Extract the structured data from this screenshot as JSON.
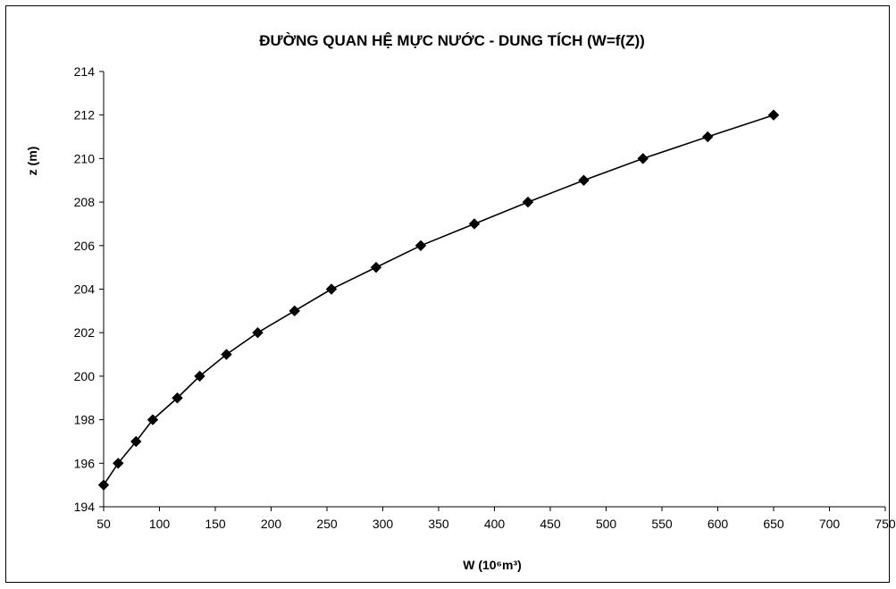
{
  "chart_data": {
    "type": "line",
    "title": "ĐƯỜNG QUAN HỆ MỰC NƯỚC - DUNG TÍCH (W=f(Z))",
    "xlabel": "W (10⁶m³)",
    "ylabel": "z (m)",
    "xlim": [
      50,
      750
    ],
    "ylim": [
      194,
      214
    ],
    "xticks": [
      "50",
      "100",
      "150",
      "200",
      "250",
      "300",
      "350",
      "400",
      "450",
      "500",
      "550",
      "600",
      "650",
      "700",
      "750"
    ],
    "yticks": [
      "194",
      "196",
      "198",
      "200",
      "202",
      "204",
      "206",
      "208",
      "210",
      "212",
      "214"
    ],
    "grid": false,
    "legend": "none",
    "marker": "diamond",
    "line_color": "#000000",
    "series": [
      {
        "x": [
          50,
          63,
          79,
          94,
          116,
          136,
          160,
          188,
          221,
          254,
          294,
          334,
          382,
          430,
          480,
          533,
          591,
          650
        ],
        "y": [
          195,
          196,
          197,
          198,
          199,
          200,
          201,
          202,
          203,
          204,
          205,
          206,
          207,
          208,
          209,
          210,
          211,
          212
        ]
      }
    ]
  }
}
